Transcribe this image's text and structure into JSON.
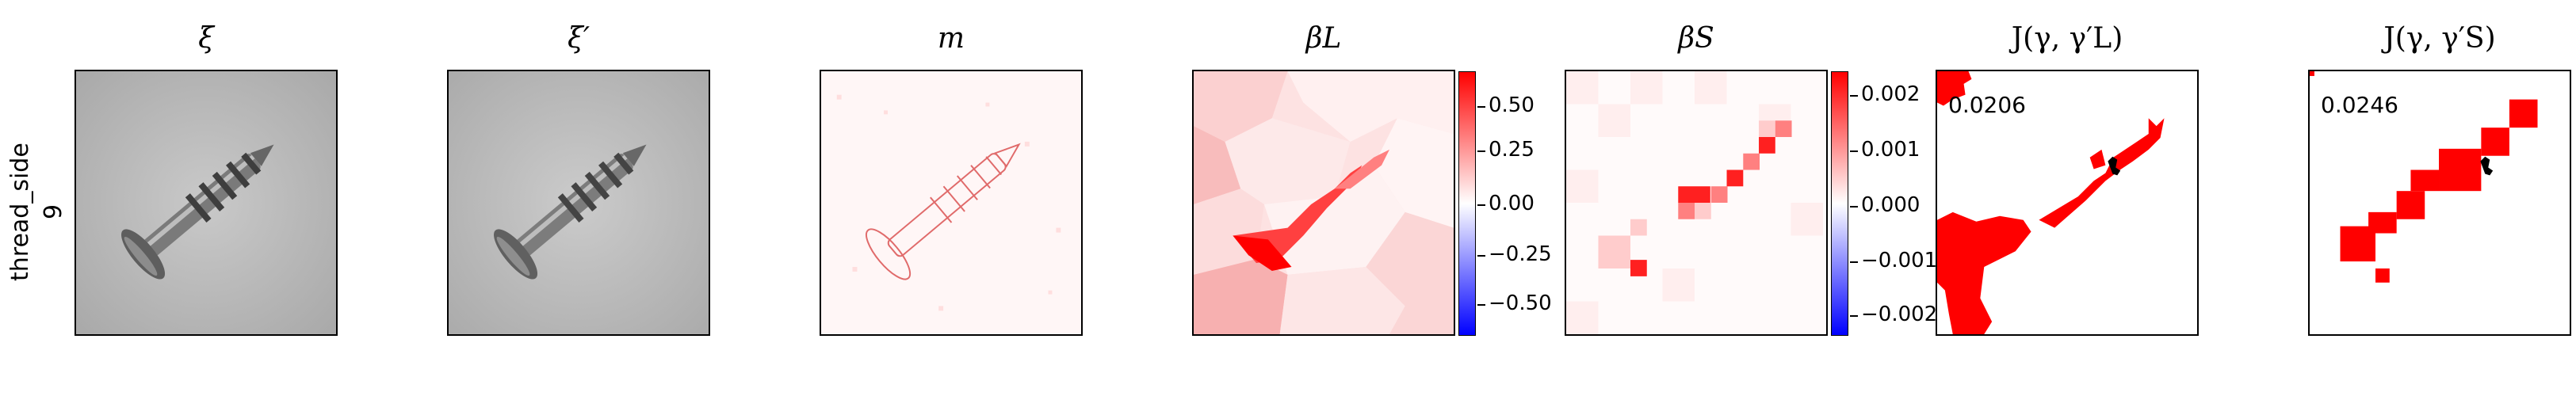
{
  "row": {
    "label_line1": "thread_side",
    "label_line2": "9"
  },
  "titles": {
    "xi": "ξ",
    "xi_prime": "ξ′",
    "m": "m",
    "beta_L": "βL",
    "beta_S": "βS",
    "J_L": "J(γ, γ′L)",
    "J_S": "J(γ, γ′S)"
  },
  "colorbar_L": {
    "ticks": [
      "0.50",
      "0.25",
      "0.00",
      "−0.25",
      "−0.50"
    ]
  },
  "colorbar_S": {
    "ticks": [
      "0.002",
      "0.001",
      "0.000",
      "−0.001",
      "−0.002"
    ]
  },
  "scores": {
    "J_L": "0.0206",
    "J_S": "0.0246"
  },
  "colors": {
    "positive": "#ff0000",
    "negative": "#0000ff",
    "neutral": "#ffffff",
    "overlap": "#000000"
  }
}
